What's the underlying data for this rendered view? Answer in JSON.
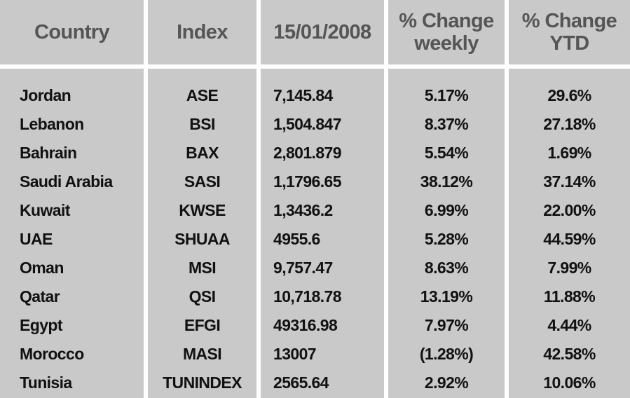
{
  "table": {
    "headers": [
      "Country",
      "Index",
      "15/01/2008",
      "% Change weekly",
      "% Change YTD"
    ],
    "rows": [
      [
        "Jordan",
        "ASE",
        "7,145.84",
        "5.17%",
        "29.6%"
      ],
      [
        "Lebanon",
        "BSI",
        "1,504.847",
        "8.37%",
        "27.18%"
      ],
      [
        "Bahrain",
        "BAX",
        "2,801.879",
        "5.54%",
        "1.69%"
      ],
      [
        "Saudi Arabia",
        "SASI",
        "1,1796.65",
        "38.12%",
        "37.14%"
      ],
      [
        "Kuwait",
        "KWSE",
        "1,3436.2",
        "6.99%",
        "22.00%"
      ],
      [
        "UAE",
        "SHUAA",
        "4955.6",
        "5.28%",
        "44.59%"
      ],
      [
        "Oman",
        "MSI",
        "9,757.47",
        "8.63%",
        "7.99%"
      ],
      [
        "Qatar",
        "QSI",
        "10,718.78",
        "13.19%",
        "11.88%"
      ],
      [
        "Egypt",
        "EFGI",
        "49316.98",
        "7.97%",
        "4.44%"
      ],
      [
        "Morocco",
        "MASI",
        "13007",
        "(1.28%)",
        "42.58%"
      ],
      [
        "Tunisia",
        "TUNINDEX",
        "2565.64",
        "2.92%",
        "10.06%"
      ]
    ]
  }
}
